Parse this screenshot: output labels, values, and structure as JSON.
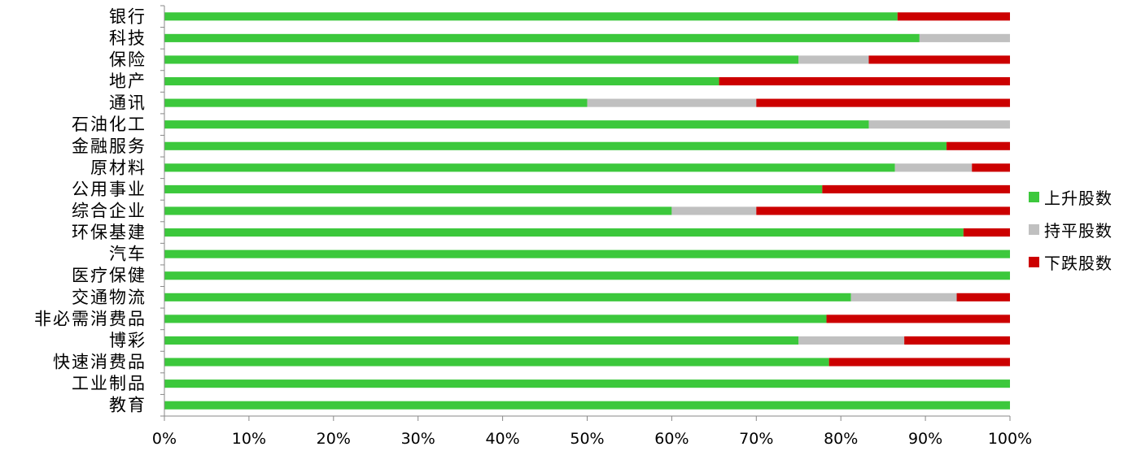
{
  "chart_data": {
    "type": "bar",
    "orientation": "horizontal",
    "stacked": "percent",
    "categories": [
      "银行",
      "科技",
      "保险",
      "地产",
      "通讯",
      "石油化工",
      "金融服务",
      "原材料",
      "公用事业",
      "综合企业",
      "环保基建",
      "汽车",
      "医疗保健",
      "交通物流",
      "非必需消费品",
      "博彩",
      "快速消费品",
      "工业制品",
      "教育"
    ],
    "series": [
      {
        "name": "上升股数",
        "color": "#3cc83c",
        "values": [
          86.7,
          89.3,
          75.0,
          65.6,
          50.0,
          83.3,
          92.5,
          86.4,
          77.8,
          60.0,
          94.5,
          100,
          100,
          81.2,
          78.3,
          75.0,
          78.6,
          100,
          100
        ]
      },
      {
        "name": "持平股数",
        "color": "#c0c0c0",
        "values": [
          0,
          10.7,
          8.3,
          0,
          20.0,
          16.7,
          0,
          9.1,
          0,
          10.0,
          0,
          0,
          0,
          12.5,
          0,
          12.5,
          0,
          0,
          0
        ]
      },
      {
        "name": "下跌股数",
        "color": "#cc0000",
        "values": [
          13.3,
          0,
          16.7,
          34.4,
          30.0,
          0,
          7.5,
          4.5,
          22.2,
          30.0,
          5.5,
          0,
          0,
          6.3,
          21.7,
          12.5,
          21.4,
          0,
          0
        ]
      }
    ],
    "x_ticks": [
      "0%",
      "10%",
      "20%",
      "30%",
      "40%",
      "50%",
      "60%",
      "70%",
      "80%",
      "90%",
      "100%"
    ],
    "xlim": [
      0,
      100
    ],
    "title": "",
    "xlabel": "",
    "ylabel": "",
    "grid": false,
    "legend_position": "right"
  }
}
